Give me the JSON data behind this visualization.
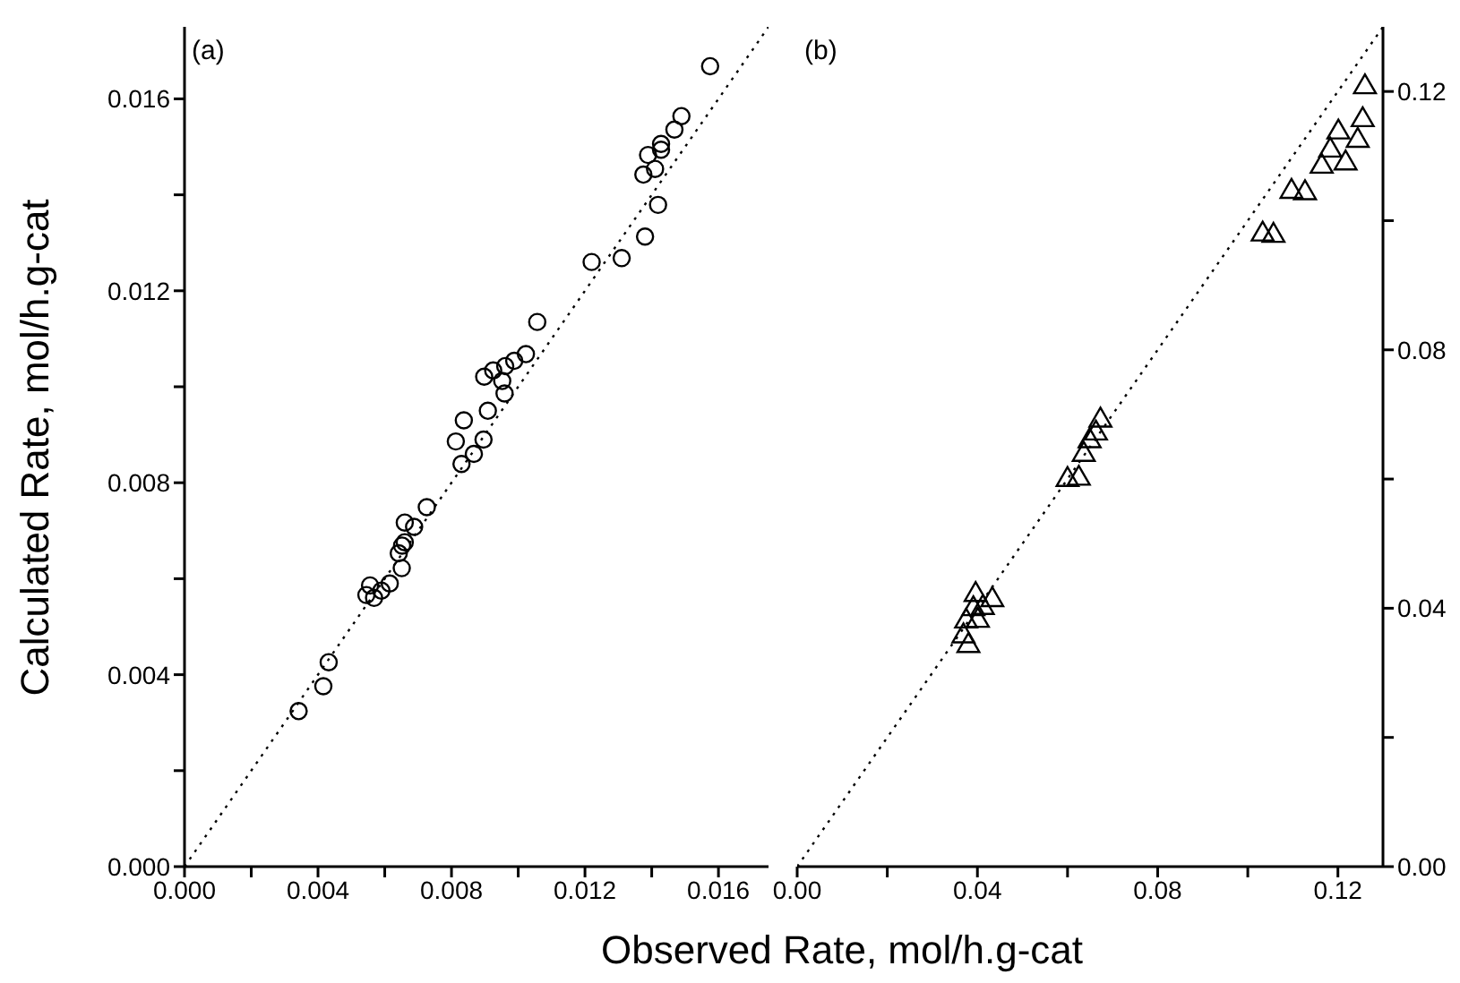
{
  "chart_data": [
    {
      "type": "scatter",
      "ylabel": "Calculated Rate, mol/h.g-cat",
      "xlabel": "Observed Rate, mol/h.g-cat",
      "annotations": [
        "(a)"
      ],
      "xlim": [
        0,
        0.0175
      ],
      "ylim": [
        0,
        0.0175
      ],
      "xticks": [
        {
          "value": 0,
          "label": "0.000"
        },
        {
          "value": 0.002,
          "label": null
        },
        {
          "value": 0.004,
          "label": "0.004"
        },
        {
          "value": 0.006,
          "label": null
        },
        {
          "value": 0.008,
          "label": "0.008"
        },
        {
          "value": 0.01,
          "label": null
        },
        {
          "value": 0.012,
          "label": "0.012"
        },
        {
          "value": 0.014,
          "label": null
        },
        {
          "value": 0.016,
          "label": "0.016"
        }
      ],
      "yticks": [
        {
          "value": 0,
          "label": "0.000"
        },
        {
          "value": 0.002,
          "label": null
        },
        {
          "value": 0.004,
          "label": "0.004"
        },
        {
          "value": 0.006,
          "label": null
        },
        {
          "value": 0.008,
          "label": "0.008"
        },
        {
          "value": 0.01,
          "label": null
        },
        {
          "value": 0.012,
          "label": "0.012"
        },
        {
          "value": 0.014,
          "label": null
        },
        {
          "value": 0.016,
          "label": "0.016"
        }
      ],
      "series": [
        {
          "type": "line",
          "color": "#000000",
          "line_style": "dotted",
          "x": [
            0,
            0.0175
          ],
          "values": [
            0,
            0.0175
          ]
        },
        {
          "type": "scatter",
          "marker": "circle",
          "color": "#000000",
          "x": [
            0.01575,
            0.01489,
            0.01468,
            0.01428,
            0.01428,
            0.01389,
            0.0141,
            0.01375,
            0.01419,
            0.0138,
            0.0131,
            0.0122,
            0.01057,
            0.01023,
            0.00988,
            0.00961,
            0.00925,
            0.00898,
            0.00952,
            0.00959,
            0.00909,
            0.00837,
            0.00896,
            0.00813,
            0.00867,
            0.0083,
            0.00726,
            0.0066,
            0.00688,
            0.0066,
            0.00652,
            0.00642,
            0.00651,
            0.00615,
            0.0059,
            0.00556,
            0.00545,
            0.00568,
            0.00432,
            0.00416,
            0.00342
          ],
          "values": [
            0.01668,
            0.01564,
            0.01536,
            0.01506,
            0.01494,
            0.01483,
            0.01454,
            0.01442,
            0.01379,
            0.01313,
            0.01268,
            0.0126,
            0.01135,
            0.01068,
            0.01054,
            0.01043,
            0.01034,
            0.01021,
            0.01012,
            0.00986,
            0.0095,
            0.0093,
            0.0089,
            0.00886,
            0.0086,
            0.00839,
            0.00749,
            0.00717,
            0.00708,
            0.00676,
            0.00669,
            0.00653,
            0.00622,
            0.0059,
            0.00575,
            0.00586,
            0.00566,
            0.0056,
            0.00426,
            0.00376,
            0.00324
          ]
        }
      ]
    },
    {
      "type": "scatter",
      "annotations": [
        "(b)"
      ],
      "xlim": [
        0,
        0.13
      ],
      "y2lim": [
        0,
        0.13
      ],
      "xticks": [
        {
          "value": 0,
          "label": "0.00"
        },
        {
          "value": 0.02,
          "label": null
        },
        {
          "value": 0.04,
          "label": "0.04"
        },
        {
          "value": 0.06,
          "label": null
        },
        {
          "value": 0.08,
          "label": "0.08"
        },
        {
          "value": 0.1,
          "label": null
        },
        {
          "value": 0.12,
          "label": "0.12"
        }
      ],
      "y2ticks": [
        {
          "value": 0,
          "label": "0.00"
        },
        {
          "value": 0.02,
          "label": null
        },
        {
          "value": 0.04,
          "label": "0.04"
        },
        {
          "value": 0.06,
          "label": null
        },
        {
          "value": 0.08,
          "label": "0.08"
        },
        {
          "value": 0.1,
          "label": null
        },
        {
          "value": 0.12,
          "label": "0.12"
        }
      ],
      "series": [
        {
          "type": "line",
          "axis": "y2",
          "color": "#000000",
          "line_style": "dotted",
          "x": [
            0,
            0.13
          ],
          "values": [
            0,
            0.13
          ]
        },
        {
          "type": "scatter",
          "axis": "y2",
          "marker": "triangle",
          "color": "#000000",
          "x": [
            0.126,
            0.1255,
            0.1201,
            0.1244,
            0.1183,
            0.1217,
            0.1164,
            0.1097,
            0.1127,
            0.1033,
            0.1057,
            0.0673,
            0.0663,
            0.0649,
            0.0636,
            0.06,
            0.0625,
            0.0396,
            0.0433,
            0.0412,
            0.0391,
            0.0401,
            0.0375,
            0.0369,
            0.038
          ],
          "values": [
            0.1207,
            0.1156,
            0.1137,
            0.1124,
            0.1109,
            0.1089,
            0.1084,
            0.1045,
            0.1043,
            0.0979,
            0.0977,
            0.0691,
            0.0671,
            0.0659,
            0.0638,
            0.0599,
            0.0601,
            0.0421,
            0.0413,
            0.0401,
            0.0399,
            0.0381,
            0.038,
            0.0357,
            0.0342
          ]
        }
      ]
    }
  ]
}
